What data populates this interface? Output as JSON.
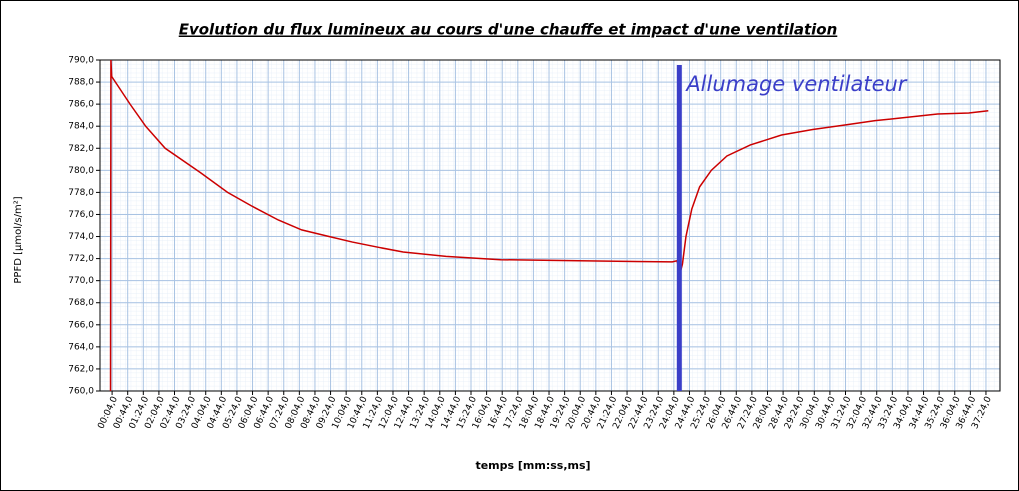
{
  "chart_data": {
    "type": "line",
    "title": "Evolution du flux lumineux au cours d'une chauffe et impact d'une ventilation",
    "xlabel": "temps [mm:ss,ms]",
    "ylabel": "PPFD [µmol/s/m²]",
    "xlim": [
      -27,
      2280
    ],
    "ylim": [
      760,
      790
    ],
    "grid": true,
    "x": [
      0,
      1,
      3,
      20,
      50,
      90,
      140,
      230,
      300,
      360,
      430,
      490,
      560,
      620,
      690,
      750,
      860,
      1000,
      1200,
      1440,
      1452,
      1460,
      1466,
      1475,
      1490,
      1510,
      1540,
      1580,
      1640,
      1720,
      1800,
      1880,
      1960,
      2040,
      2120,
      2200,
      2250
    ],
    "series": [
      {
        "color": "#cc0000",
        "values": [
          760,
          790,
          788.5,
          787.6,
          786,
          784,
          782,
          779.8,
          778,
          776.8,
          775.5,
          774.6,
          774,
          773.5,
          773,
          772.6,
          772.2,
          771.9,
          771.8,
          771.7,
          771.8,
          770.7,
          771.5,
          774,
          776.5,
          778.5,
          780,
          781.3,
          782.3,
          783.2,
          783.7,
          784.1,
          784.5,
          784.8,
          785.1,
          785.2,
          785.4
        ]
      }
    ],
    "annotations": [
      {
        "text": "Allumage ventilateur",
        "x": 1458,
        "color": "#3a3ec8"
      }
    ],
    "yticks": [
      {
        "value": 760,
        "label": "760,0"
      },
      {
        "value": 762,
        "label": "762,0"
      },
      {
        "value": 764,
        "label": "764,0"
      },
      {
        "value": 766,
        "label": "766,0"
      },
      {
        "value": 768,
        "label": "768,0"
      },
      {
        "value": 770,
        "label": "770,0"
      },
      {
        "value": 772,
        "label": "772,0"
      },
      {
        "value": 774,
        "label": "774,0"
      },
      {
        "value": 776,
        "label": "776,0"
      },
      {
        "value": 778,
        "label": "778,0"
      },
      {
        "value": 780,
        "label": "780,0"
      },
      {
        "value": 782,
        "label": "782,0"
      },
      {
        "value": 784,
        "label": "784,0"
      },
      {
        "value": 786,
        "label": "786,0"
      },
      {
        "value": 788,
        "label": "788,0"
      },
      {
        "value": 790,
        "label": "790,0"
      }
    ],
    "xticks": [
      {
        "value": 4,
        "label": "00:04,0"
      },
      {
        "value": 44,
        "label": "00:44,0"
      },
      {
        "value": 84,
        "label": "01:24,0"
      },
      {
        "value": 124,
        "label": "02:04,0"
      },
      {
        "value": 164,
        "label": "02:44,0"
      },
      {
        "value": 204,
        "label": "03:24,0"
      },
      {
        "value": 244,
        "label": "04:04,0"
      },
      {
        "value": 284,
        "label": "04:44,0"
      },
      {
        "value": 324,
        "label": "05:24,0"
      },
      {
        "value": 364,
        "label": "06:04,0"
      },
      {
        "value": 404,
        "label": "06:44,0"
      },
      {
        "value": 444,
        "label": "07:24,0"
      },
      {
        "value": 484,
        "label": "08:04,0"
      },
      {
        "value": 524,
        "label": "08:44,0"
      },
      {
        "value": 564,
        "label": "09:24,0"
      },
      {
        "value": 604,
        "label": "10:04,0"
      },
      {
        "value": 644,
        "label": "10:44,0"
      },
      {
        "value": 684,
        "label": "11:24,0"
      },
      {
        "value": 724,
        "label": "12:04,0"
      },
      {
        "value": 764,
        "label": "12:44,0"
      },
      {
        "value": 804,
        "label": "13:24,0"
      },
      {
        "value": 844,
        "label": "14:04,0"
      },
      {
        "value": 884,
        "label": "14:44,0"
      },
      {
        "value": 924,
        "label": "15:24,0"
      },
      {
        "value": 964,
        "label": "16:04,0"
      },
      {
        "value": 1004,
        "label": "16:44,0"
      },
      {
        "value": 1044,
        "label": "17:24,0"
      },
      {
        "value": 1084,
        "label": "18:04,0"
      },
      {
        "value": 1124,
        "label": "18:44,0"
      },
      {
        "value": 1164,
        "label": "19:24,0"
      },
      {
        "value": 1204,
        "label": "20:04,0"
      },
      {
        "value": 1244,
        "label": "20:44,0"
      },
      {
        "value": 1284,
        "label": "21:24,0"
      },
      {
        "value": 1324,
        "label": "22:04,0"
      },
      {
        "value": 1364,
        "label": "22:44,0"
      },
      {
        "value": 1404,
        "label": "23:24,0"
      },
      {
        "value": 1444,
        "label": "24:04,0"
      },
      {
        "value": 1484,
        "label": "24:44,0"
      },
      {
        "value": 1524,
        "label": "25:24,0"
      },
      {
        "value": 1564,
        "label": "26:04,0"
      },
      {
        "value": 1604,
        "label": "26:44,0"
      },
      {
        "value": 1644,
        "label": "27:24,0"
      },
      {
        "value": 1684,
        "label": "28:04,0"
      },
      {
        "value": 1724,
        "label": "28:44,0"
      },
      {
        "value": 1764,
        "label": "29:24,0"
      },
      {
        "value": 1804,
        "label": "30:04,0"
      },
      {
        "value": 1844,
        "label": "30:44,0"
      },
      {
        "value": 1884,
        "label": "31:24,0"
      },
      {
        "value": 1924,
        "label": "32:04,0"
      },
      {
        "value": 1964,
        "label": "32:44,0"
      },
      {
        "value": 2004,
        "label": "33:24,0"
      },
      {
        "value": 2044,
        "label": "34:04,0"
      },
      {
        "value": 2084,
        "label": "34:44,0"
      },
      {
        "value": 2124,
        "label": "35:24,0"
      },
      {
        "value": 2164,
        "label": "36:04,0"
      },
      {
        "value": 2204,
        "label": "36:44,0"
      },
      {
        "value": 2244,
        "label": "37:24,0"
      }
    ]
  }
}
